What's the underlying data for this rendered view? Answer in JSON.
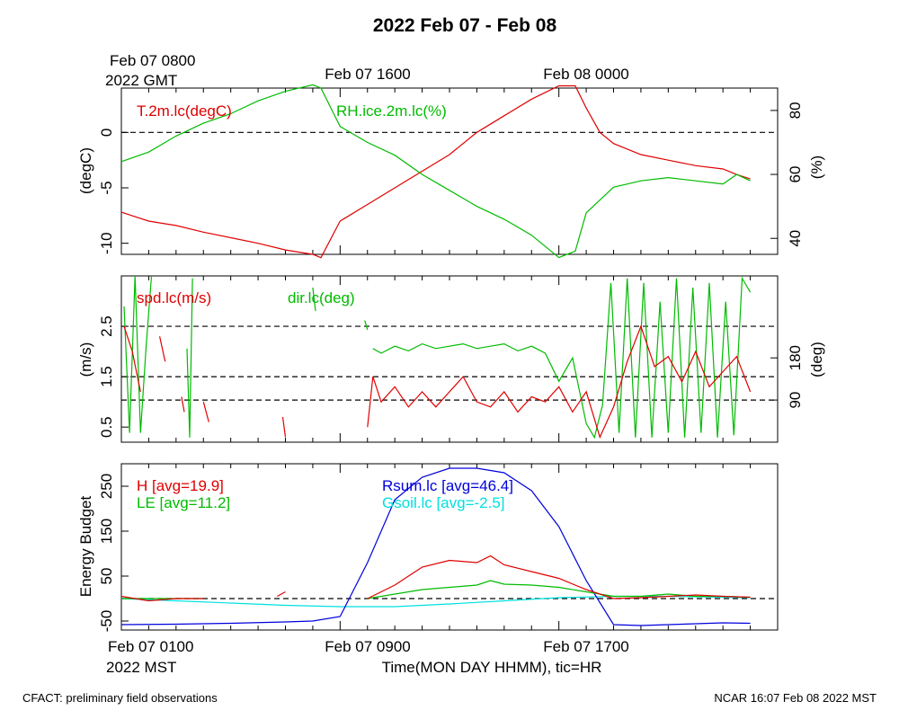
{
  "title": "2022 Feb 07 - Feb 08",
  "colors": {
    "red": "#e00000",
    "green": "#00bb00",
    "blue": "#0000dd",
    "cyan": "#00e0e0",
    "black": "#000000"
  },
  "top_labels": {
    "left_line1": "Feb 07 0800",
    "left_line2": "2022 GMT",
    "mid": "Feb 07 1600",
    "right": "Feb 08 0000"
  },
  "bottom_labels": {
    "left_line1": "Feb 07 0100",
    "left_line2": "2022 MST",
    "mid": "Feb 07 0900",
    "right": "Feb 07 1700",
    "xlabel": "Time(MON DAY HHMM), tic=HR"
  },
  "footer": {
    "left": "CFACT: preliminary field observations",
    "right": "NCAR 16:07 Feb 08 2022 MST"
  },
  "chart_data": [
    {
      "type": "line",
      "panel": "temperature-humidity",
      "x_unit": "hours since Feb 07 0100 MST",
      "xlim": [
        0,
        24
      ],
      "ylim_left": [
        -11,
        4
      ],
      "ylim_right": [
        35,
        87
      ],
      "ylabel_left": "(degC)",
      "ylabel_right": "(%)",
      "yticks_left": [
        0,
        -5,
        -10
      ],
      "yticks_right": [
        80,
        60,
        40
      ],
      "ref_line_left": 0,
      "series": [
        {
          "name": "T.2m.lc(degC)",
          "axis": "left",
          "color": "red",
          "x": [
            0,
            0.5,
            1,
            1.5,
            2,
            3,
            4,
            5,
            6,
            7,
            7.3,
            8,
            9,
            10,
            11,
            12,
            13,
            14,
            15,
            16,
            16.6,
            17,
            17.5,
            18,
            19,
            20,
            21,
            22,
            22.5,
            23
          ],
          "y": [
            -7.2,
            -7.6,
            -8.0,
            -8.2,
            -8.4,
            -9.0,
            -9.5,
            -10.0,
            -10.6,
            -11.0,
            -11.3,
            -8.0,
            -6.5,
            -5.0,
            -3.5,
            -2.0,
            0.0,
            1.5,
            3.0,
            4.2,
            4.2,
            2.2,
            0.0,
            -1.0,
            -2.0,
            -2.5,
            -3.0,
            -3.3,
            -3.8,
            -4.2
          ]
        },
        {
          "name": "RH.ice.2m.lc(%)",
          "axis": "right",
          "color": "green",
          "x": [
            0,
            1,
            2,
            3,
            4,
            5,
            6,
            7,
            7.3,
            8,
            9,
            10,
            11,
            12,
            13,
            14,
            15,
            16,
            16.6,
            17,
            18,
            19,
            20,
            21,
            22,
            22.5,
            23
          ],
          "y": [
            64,
            67,
            72,
            76,
            79,
            83,
            86,
            88,
            87,
            75,
            70,
            66,
            60,
            55,
            50,
            46,
            41,
            34,
            36,
            48,
            56,
            58,
            59,
            58,
            57,
            60,
            58
          ]
        }
      ]
    },
    {
      "type": "line",
      "panel": "wind",
      "x_unit": "hours since Feb 07 0100 MST",
      "xlim": [
        0,
        24
      ],
      "ylim_left": [
        0.2,
        3.5
      ],
      "ylim_right": [
        0,
        355
      ],
      "ylabel_left": "(m/s)",
      "ylabel_right": "(deg)",
      "yticks_left": [
        2.5,
        1.5,
        0.5
      ],
      "yticks_right": [
        180,
        90
      ],
      "ref_lines_left": [
        2.5,
        1.5
      ],
      "ref_lines_right": [
        90
      ],
      "series": [
        {
          "name": "spd.lc(m/s)",
          "axis": "left",
          "color": "red",
          "segments": [
            {
              "x": [
                0.1,
                0.4,
                0.7
              ],
              "y": [
                2.5,
                2.0,
                1.2
              ]
            },
            {
              "x": [
                1.4,
                1.6
              ],
              "y": [
                2.3,
                1.8
              ]
            },
            {
              "x": [
                2.2,
                2.3
              ],
              "y": [
                1.1,
                0.8
              ]
            },
            {
              "x": [
                3.0,
                3.2
              ],
              "y": [
                1.0,
                0.6
              ]
            },
            {
              "x": [
                5.9,
                6.0
              ],
              "y": [
                0.7,
                0.3
              ]
            },
            {
              "x": [
                9.0,
                9.2,
                9.5,
                10,
                10.5,
                11,
                11.5,
                12,
                12.5,
                13,
                13.5,
                14,
                14.5,
                15,
                15.5,
                16,
                16.5,
                17,
                17.5,
                18,
                18.5,
                19,
                19.5,
                20,
                20.5,
                21,
                21.5,
                22,
                22.5,
                23
              ],
              "y": [
                0.5,
                1.5,
                1.0,
                1.3,
                0.9,
                1.2,
                0.9,
                1.2,
                1.5,
                1.0,
                0.9,
                1.2,
                0.8,
                1.1,
                1.0,
                1.3,
                0.8,
                1.2,
                0.3,
                0.9,
                1.8,
                2.5,
                1.7,
                1.9,
                1.4,
                2.0,
                1.3,
                1.6,
                1.9,
                1.2
              ]
            }
          ]
        },
        {
          "name": "dir.lc(deg)",
          "axis": "right",
          "color": "green",
          "segments": [
            {
              "x": [
                0.1,
                0.3,
                0.5,
                0.7,
                0.9,
                1.1
              ],
              "y": [
                290,
                20,
                355,
                20,
                200,
                355
              ]
            },
            {
              "x": [
                2.4,
                2.5,
                2.6
              ],
              "y": [
                200,
                10,
                350
              ]
            },
            {
              "x": [
                7.0,
                7.1
              ],
              "y": [
                330,
                280
              ]
            },
            {
              "x": [
                8.9,
                9.0
              ],
              "y": [
                260,
                240
              ]
            },
            {
              "x": [
                9.2,
                9.5,
                10,
                10.5,
                11,
                11.5,
                12,
                12.5,
                13,
                13.5,
                14,
                14.5,
                15,
                15.5,
                16,
                16.5,
                17,
                17.3,
                17.6,
                17.9,
                18.2,
                18.5,
                18.8,
                19.1,
                19.4,
                19.7,
                20,
                20.3,
                20.6,
                20.9,
                21.2,
                21.5,
                21.8,
                22.1,
                22.4,
                22.7,
                23
              ],
              "y": [
                200,
                190,
                205,
                195,
                210,
                200,
                205,
                210,
                200,
                205,
                210,
                195,
                205,
                190,
                130,
                180,
                40,
                10,
                80,
                340,
                20,
                350,
                10,
                340,
                10,
                300,
                20,
                350,
                10,
                330,
                20,
                340,
                10,
                300,
                15,
                350,
                320
              ]
            }
          ]
        }
      ]
    },
    {
      "type": "line",
      "panel": "energy-budget",
      "x_unit": "hours since Feb 07 0100 MST",
      "xlim": [
        0,
        24
      ],
      "ylim": [
        -70,
        300
      ],
      "ylabel": "Energy Budget",
      "yticks": [
        250,
        150,
        50,
        -50
      ],
      "ref_line": 0,
      "series": [
        {
          "name": "H [avg=19.9]",
          "color": "red",
          "segments": [
            {
              "x": [
                0,
                1,
                2,
                3
              ],
              "y": [
                5,
                -5,
                0,
                0
              ]
            },
            {
              "x": [
                5.7,
                6.0
              ],
              "y": [
                5,
                15
              ]
            },
            {
              "x": [
                9,
                10,
                11,
                12,
                13,
                13.5,
                14,
                15,
                16,
                17,
                18,
                19,
                20,
                21,
                22,
                23
              ],
              "y": [
                0,
                30,
                70,
                85,
                80,
                95,
                75,
                60,
                45,
                20,
                0,
                2,
                5,
                8,
                5,
                3
              ]
            }
          ]
        },
        {
          "name": "LE [avg=11.2]",
          "color": "green",
          "segments": [
            {
              "x": [
                0,
                1,
                2,
                3
              ],
              "y": [
                0,
                0,
                0,
                0
              ]
            },
            {
              "x": [
                9,
                10,
                11,
                12,
                13,
                13.5,
                14,
                15,
                16,
                17,
                18,
                19,
                20,
                21,
                22,
                23
              ],
              "y": [
                0,
                10,
                20,
                25,
                30,
                40,
                32,
                30,
                25,
                15,
                5,
                5,
                10,
                5,
                5,
                3
              ]
            }
          ]
        },
        {
          "name": "Rsum.lc [avg=46.4]",
          "color": "blue",
          "x": [
            0,
            2,
            4,
            6,
            7,
            8,
            9,
            10,
            11,
            12,
            13,
            14,
            15,
            16,
            17,
            18,
            19,
            20,
            21,
            22,
            23
          ],
          "y": [
            -58,
            -57,
            -55,
            -52,
            -50,
            -40,
            80,
            220,
            270,
            290,
            290,
            280,
            240,
            160,
            40,
            -58,
            -60,
            -58,
            -56,
            -54,
            -55
          ]
        },
        {
          "name": "Gsoil.lc [avg=-2.5]",
          "color": "cyan",
          "x": [
            0,
            2,
            4,
            6,
            8,
            10,
            12,
            14,
            16,
            18,
            20,
            22,
            23
          ],
          "y": [
            0,
            -5,
            -10,
            -15,
            -18,
            -18,
            -12,
            -5,
            2,
            5,
            5,
            3,
            2
          ]
        }
      ]
    }
  ]
}
